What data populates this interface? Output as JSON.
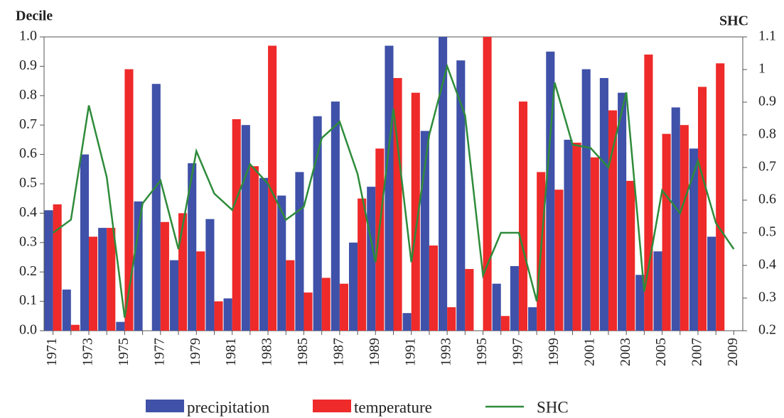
{
  "chart_data": {
    "type": "bar_line",
    "y_label": "Decile",
    "y2_label": "SHC",
    "categories": [
      "1971",
      null,
      "1973",
      null,
      "1975",
      null,
      "1977",
      null,
      "1979",
      null,
      "1981",
      null,
      "1983",
      null,
      "1985",
      null,
      "1987",
      null,
      "1989",
      null,
      "1991",
      null,
      "1993",
      null,
      "1995",
      null,
      "1997",
      null,
      "1999",
      null,
      "2001",
      null,
      "2003",
      null,
      "2005",
      null,
      "2007",
      null,
      "2009"
    ],
    "series": [
      {
        "name": "precipitation",
        "type": "bar",
        "color": "#3f51a8",
        "values": [
          0.41,
          0.14,
          0.6,
          0.35,
          0.03,
          0.44,
          0.84,
          0.24,
          0.57,
          0.38,
          0.11,
          0.7,
          0.52,
          0.46,
          0.54,
          0.73,
          0.78,
          0.3,
          0.49,
          0.97,
          0.06,
          0.68,
          1.0,
          0.92,
          0,
          0.16,
          0.22,
          0.08,
          0.95,
          0.65,
          0.89,
          0.86,
          0.81,
          0.19,
          0.27,
          0.76,
          0.62,
          0.32,
          null
        ]
      },
      {
        "name": "temperature",
        "type": "bar",
        "color": "#ee2a2a",
        "values": [
          0.43,
          0.02,
          0.32,
          0.35,
          0.89,
          0,
          0.37,
          0.4,
          0.27,
          0.1,
          0.72,
          0.56,
          0.97,
          0.24,
          0.13,
          0.18,
          0.16,
          0.45,
          0.62,
          0.86,
          0.81,
          0.29,
          0.08,
          0.21,
          1.0,
          0.05,
          0.78,
          0.54,
          0.48,
          0.64,
          0.59,
          0.75,
          0.51,
          0.94,
          0.67,
          0.7,
          0.83,
          0.91,
          null
        ]
      },
      {
        "name": "SHC",
        "type": "line",
        "axis": "y2",
        "color": "#2e8b3a",
        "values": [
          0.5,
          0.54,
          0.89,
          0.67,
          0.24,
          0.59,
          0.66,
          0.45,
          0.75,
          0.62,
          0.57,
          0.71,
          0.65,
          0.54,
          0.58,
          0.79,
          0.84,
          0.68,
          0.41,
          0.88,
          0.41,
          0.8,
          1.01,
          0.86,
          0.37,
          0.5,
          0.5,
          0.29,
          0.96,
          0.77,
          0.76,
          0.7,
          0.93,
          0.32,
          0.63,
          0.56,
          0.72,
          0.53,
          0.45
        ]
      }
    ],
    "ylim": [
      0,
      1
    ],
    "yticks": [
      {
        "value": 0,
        "label": "0.0"
      },
      0.1,
      0.2,
      0.3,
      0.4,
      0.5,
      0.6,
      0.7,
      0.8,
      0.9,
      {
        "value": 1,
        "label": "1.0"
      }
    ],
    "y2lim": [
      0.2,
      1.1
    ],
    "y2ticks": [
      0.2,
      0.3,
      0.4,
      0.5,
      0.6,
      0.7,
      0.8,
      0.9,
      1,
      1.1
    ],
    "grid": false
  }
}
